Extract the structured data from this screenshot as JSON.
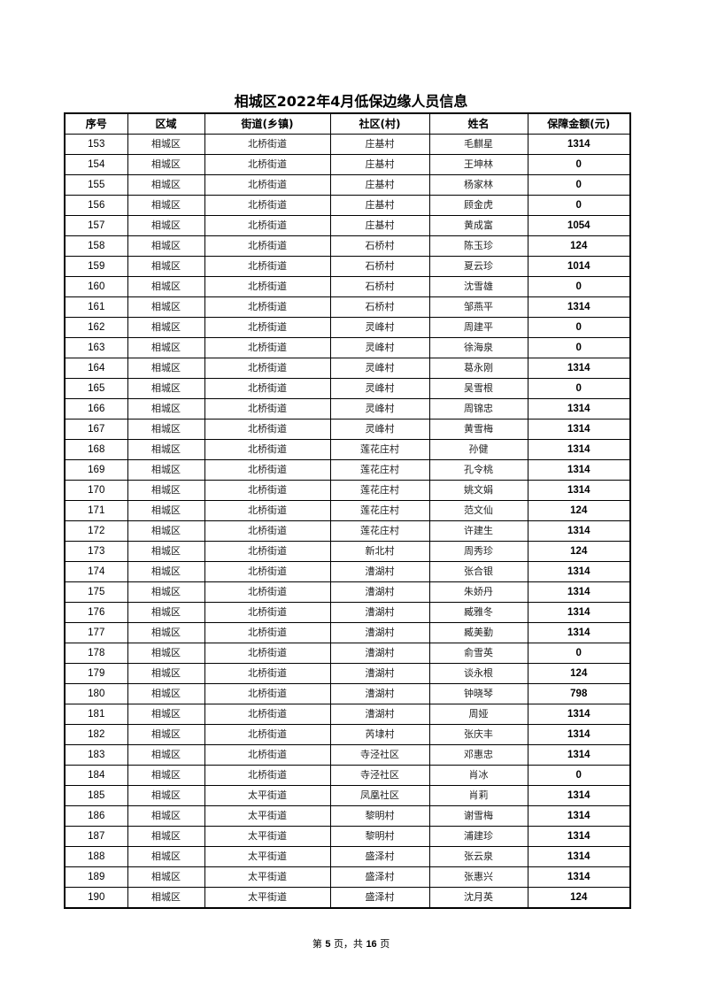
{
  "title": "相城区2022年4月低保边缘人员信息",
  "columns": [
    "序号",
    "区域",
    "街道(乡镇)",
    "社区(村)",
    "姓名",
    "保障金额(元)"
  ],
  "rows": [
    [
      "153",
      "相城区",
      "北桥街道",
      "庄基村",
      "毛麒星",
      "1314"
    ],
    [
      "154",
      "相城区",
      "北桥街道",
      "庄基村",
      "王坤林",
      "0"
    ],
    [
      "155",
      "相城区",
      "北桥街道",
      "庄基村",
      "杨家林",
      "0"
    ],
    [
      "156",
      "相城区",
      "北桥街道",
      "庄基村",
      "顾金虎",
      "0"
    ],
    [
      "157",
      "相城区",
      "北桥街道",
      "庄基村",
      "黄成富",
      "1054"
    ],
    [
      "158",
      "相城区",
      "北桥街道",
      "石桥村",
      "陈玉珍",
      "124"
    ],
    [
      "159",
      "相城区",
      "北桥街道",
      "石桥村",
      "夏云珍",
      "1014"
    ],
    [
      "160",
      "相城区",
      "北桥街道",
      "石桥村",
      "沈雪雄",
      "0"
    ],
    [
      "161",
      "相城区",
      "北桥街道",
      "石桥村",
      "邹燕平",
      "1314"
    ],
    [
      "162",
      "相城区",
      "北桥街道",
      "灵峰村",
      "周建平",
      "0"
    ],
    [
      "163",
      "相城区",
      "北桥街道",
      "灵峰村",
      "徐海泉",
      "0"
    ],
    [
      "164",
      "相城区",
      "北桥街道",
      "灵峰村",
      "葛永刚",
      "1314"
    ],
    [
      "165",
      "相城区",
      "北桥街道",
      "灵峰村",
      "吴雪根",
      "0"
    ],
    [
      "166",
      "相城区",
      "北桥街道",
      "灵峰村",
      "周锦忠",
      "1314"
    ],
    [
      "167",
      "相城区",
      "北桥街道",
      "灵峰村",
      "黄雪梅",
      "1314"
    ],
    [
      "168",
      "相城区",
      "北桥街道",
      "莲花庄村",
      "孙健",
      "1314"
    ],
    [
      "169",
      "相城区",
      "北桥街道",
      "莲花庄村",
      "孔令桃",
      "1314"
    ],
    [
      "170",
      "相城区",
      "北桥街道",
      "莲花庄村",
      "姚文娟",
      "1314"
    ],
    [
      "171",
      "相城区",
      "北桥街道",
      "莲花庄村",
      "范文仙",
      "124"
    ],
    [
      "172",
      "相城区",
      "北桥街道",
      "莲花庄村",
      "许建生",
      "1314"
    ],
    [
      "173",
      "相城区",
      "北桥街道",
      "新北村",
      "周秀珍",
      "124"
    ],
    [
      "174",
      "相城区",
      "北桥街道",
      "漕湖村",
      "张合银",
      "1314"
    ],
    [
      "175",
      "相城区",
      "北桥街道",
      "漕湖村",
      "朱娇丹",
      "1314"
    ],
    [
      "176",
      "相城区",
      "北桥街道",
      "漕湖村",
      "臧雅冬",
      "1314"
    ],
    [
      "177",
      "相城区",
      "北桥街道",
      "漕湖村",
      "臧美勤",
      "1314"
    ],
    [
      "178",
      "相城区",
      "北桥街道",
      "漕湖村",
      "俞雪英",
      "0"
    ],
    [
      "179",
      "相城区",
      "北桥街道",
      "漕湖村",
      "谈永根",
      "124"
    ],
    [
      "180",
      "相城区",
      "北桥街道",
      "漕湖村",
      "钟晓琴",
      "798"
    ],
    [
      "181",
      "相城区",
      "北桥街道",
      "漕湖村",
      "周娅",
      "1314"
    ],
    [
      "182",
      "相城区",
      "北桥街道",
      "芮埭村",
      "张庆丰",
      "1314"
    ],
    [
      "183",
      "相城区",
      "北桥街道",
      "寺泾社区",
      "邓惠忠",
      "1314"
    ],
    [
      "184",
      "相城区",
      "北桥街道",
      "寺泾社区",
      "肖冰",
      "0"
    ],
    [
      "185",
      "相城区",
      "太平街道",
      "凤凰社区",
      "肖莉",
      "1314"
    ],
    [
      "186",
      "相城区",
      "太平街道",
      "黎明村",
      "谢雪梅",
      "1314"
    ],
    [
      "187",
      "相城区",
      "太平街道",
      "黎明村",
      "浦建珍",
      "1314"
    ],
    [
      "188",
      "相城区",
      "太平街道",
      "盛泽村",
      "张云泉",
      "1314"
    ],
    [
      "189",
      "相城区",
      "太平街道",
      "盛泽村",
      "张惠兴",
      "1314"
    ],
    [
      "190",
      "相城区",
      "太平街道",
      "盛泽村",
      "沈月英",
      "124"
    ]
  ],
  "footer": {
    "prefix": "第",
    "page": "5",
    "middle": "页，共",
    "total": "16",
    "suffix": "页"
  }
}
